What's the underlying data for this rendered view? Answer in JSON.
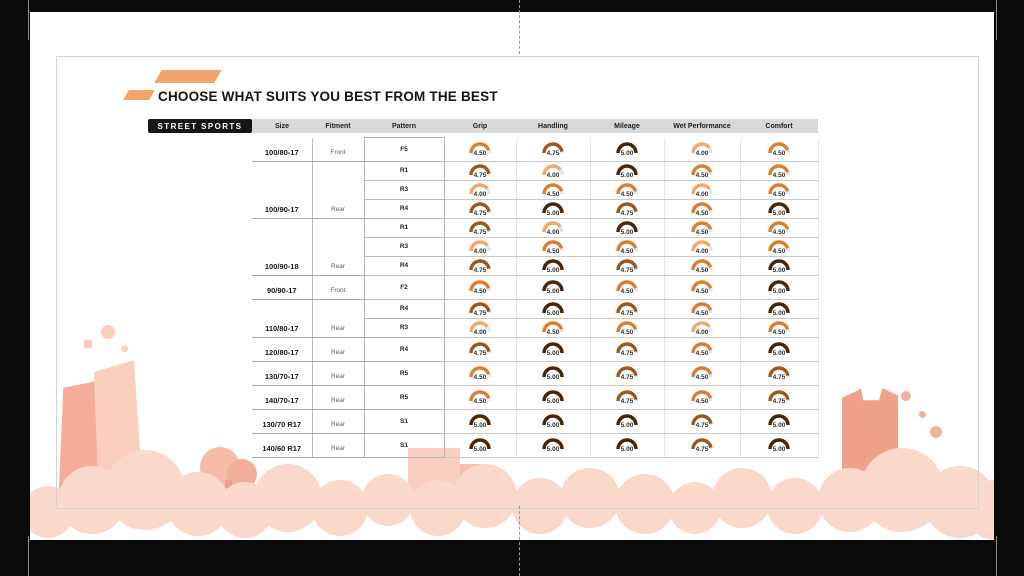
{
  "title": "CHOOSE WHAT SUITS YOU BEST FROM THE BEST",
  "category_badge": "STREET SPORTS",
  "accent_color": "#F2A56B",
  "track_color": "#E4E4E4",
  "rating_scale_max": 5,
  "rating_colors": {
    "4.00": "#F1A868",
    "4.50": "#DD7E2C",
    "4.75": "#9E5718",
    "5.00": "#4B2508"
  },
  "table": {
    "columns": [
      "Size",
      "Fitment",
      "Pattern",
      "Grip",
      "Handling",
      "Mileage",
      "Wet Performance",
      "Comfort"
    ],
    "groups": [
      {
        "size": "100/80-17",
        "fitment": "Front",
        "patterns": [
          {
            "name": "F5",
            "ratings": [
              "4.50",
              "4.75",
              "5.00",
              "4.00",
              "4.50"
            ]
          }
        ]
      },
      {
        "size": "100/90-17",
        "fitment": "Rear",
        "patterns": [
          {
            "name": "R1",
            "ratings": [
              "4.75",
              "4.00",
              "5.00",
              "4.50",
              "4.50"
            ]
          },
          {
            "name": "R3",
            "ratings": [
              "4.00",
              "4.50",
              "4.50",
              "4.00",
              "4.50"
            ]
          },
          {
            "name": "R4",
            "ratings": [
              "4.75",
              "5.00",
              "4.75",
              "4.50",
              "5.00"
            ]
          }
        ]
      },
      {
        "size": "100/90-18",
        "fitment": "Rear",
        "patterns": [
          {
            "name": "R1",
            "ratings": [
              "4.75",
              "4.00",
              "5.00",
              "4.50",
              "4.50"
            ]
          },
          {
            "name": "R3",
            "ratings": [
              "4.00",
              "4.50",
              "4.50",
              "4.00",
              "4.50"
            ]
          },
          {
            "name": "R4",
            "ratings": [
              "4.75",
              "5.00",
              "4.75",
              "4.50",
              "5.00"
            ]
          }
        ]
      },
      {
        "size": "90/90-17",
        "fitment": "Front",
        "patterns": [
          {
            "name": "F2",
            "ratings": [
              "4.50",
              "5.00",
              "4.50",
              "4.50",
              "5.00"
            ]
          }
        ]
      },
      {
        "size": "110/80-17",
        "fitment": "Rear",
        "patterns": [
          {
            "name": "R4",
            "ratings": [
              "4.75",
              "5.00",
              "4.75",
              "4.50",
              "5.00"
            ]
          },
          {
            "name": "R3",
            "ratings": [
              "4.00",
              "4.50",
              "4.50",
              "4.00",
              "4.50"
            ]
          }
        ]
      },
      {
        "size": "120/80-17",
        "fitment": "Rear",
        "patterns": [
          {
            "name": "R4",
            "ratings": [
              "4.75",
              "5.00",
              "4.75",
              "4.50",
              "5.00"
            ]
          }
        ]
      },
      {
        "size": "130/70-17",
        "fitment": "Rear",
        "patterns": [
          {
            "name": "R5",
            "ratings": [
              "4.50",
              "5.00",
              "4.75",
              "4.50",
              "4.75"
            ]
          }
        ]
      },
      {
        "size": "140/70-17",
        "fitment": "Rear",
        "patterns": [
          {
            "name": "R5",
            "ratings": [
              "4.50",
              "5.00",
              "4.75",
              "4.50",
              "4.75"
            ]
          }
        ]
      },
      {
        "size": "130/70 R17",
        "fitment": "Rear",
        "patterns": [
          {
            "name": "S1",
            "ratings": [
              "5.00",
              "5.00",
              "5.00",
              "4.75",
              "5.00"
            ]
          }
        ]
      },
      {
        "size": "140/60 R17",
        "fitment": "Rear",
        "patterns": [
          {
            "name": "S1",
            "ratings": [
              "5.00",
              "5.00",
              "5.00",
              "4.75",
              "5.00"
            ]
          }
        ]
      }
    ]
  }
}
